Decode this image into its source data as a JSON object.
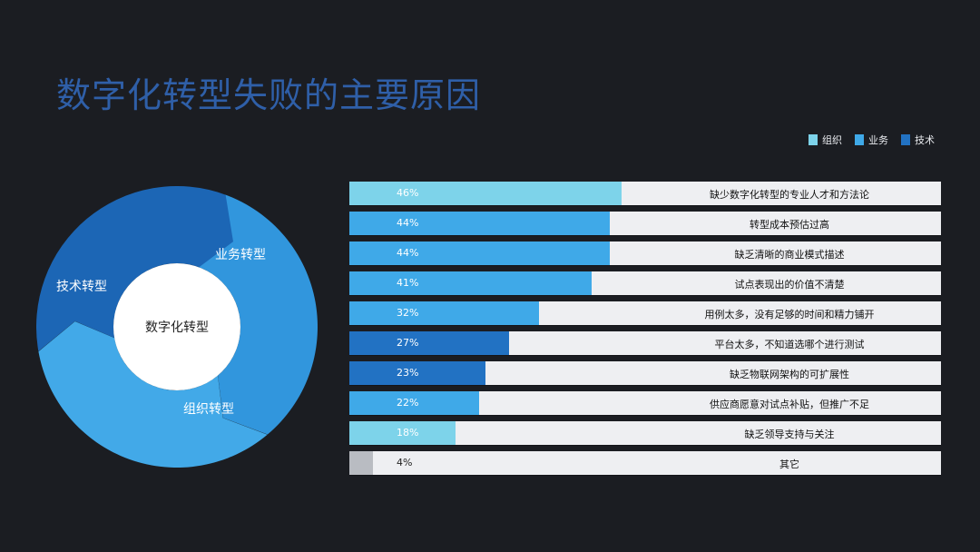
{
  "slide": {
    "title": "数字化转型失败的主要原因"
  },
  "legend": [
    {
      "label": "组织",
      "color": "#7dd3ea"
    },
    {
      "label": "业务",
      "color": "#3fa9e8"
    },
    {
      "label": "技术",
      "color": "#2272c3"
    }
  ],
  "donut": {
    "center_label": "数字化转型",
    "segments": [
      {
        "label": "业务转型",
        "color": "#3196dd",
        "share": 0.333
      },
      {
        "label": "组织转型",
        "color": "#42a9e8",
        "share": 0.333
      },
      {
        "label": "技术转型",
        "color": "#1c66b5",
        "share": 0.334
      }
    ]
  },
  "chart_data": {
    "type": "bar",
    "orientation": "horizontal",
    "categories": [
      "缺少数字化转型的专业人才和方法论",
      "转型成本预估过高",
      "缺乏清晰的商业模式描述",
      "试点表现出的价值不清楚",
      "用例太多，没有足够的时间和精力铺开",
      "平台太多，不知道选哪个进行测试",
      "缺乏物联网架构的可扩展性",
      "供应商愿意对试点补贴，但推广不足",
      "缺乏领导支持与关注",
      "其它"
    ],
    "values": [
      46,
      44,
      44,
      41,
      32,
      27,
      23,
      22,
      18,
      4
    ],
    "value_labels": [
      "46%",
      "44%",
      "44%",
      "41%",
      "32%",
      "27%",
      "23%",
      "22%",
      "18%",
      "4%"
    ],
    "bar_colors": [
      "#7dd3ea",
      "#3fa9e8",
      "#3fa9e8",
      "#3fa9e8",
      "#3fa9e8",
      "#2272c3",
      "#2272c3",
      "#3fa9e8",
      "#7dd3ea",
      "#b9bcc2"
    ],
    "xlim": [
      0,
      100
    ],
    "legend": [
      "组织",
      "业务",
      "技术"
    ]
  }
}
